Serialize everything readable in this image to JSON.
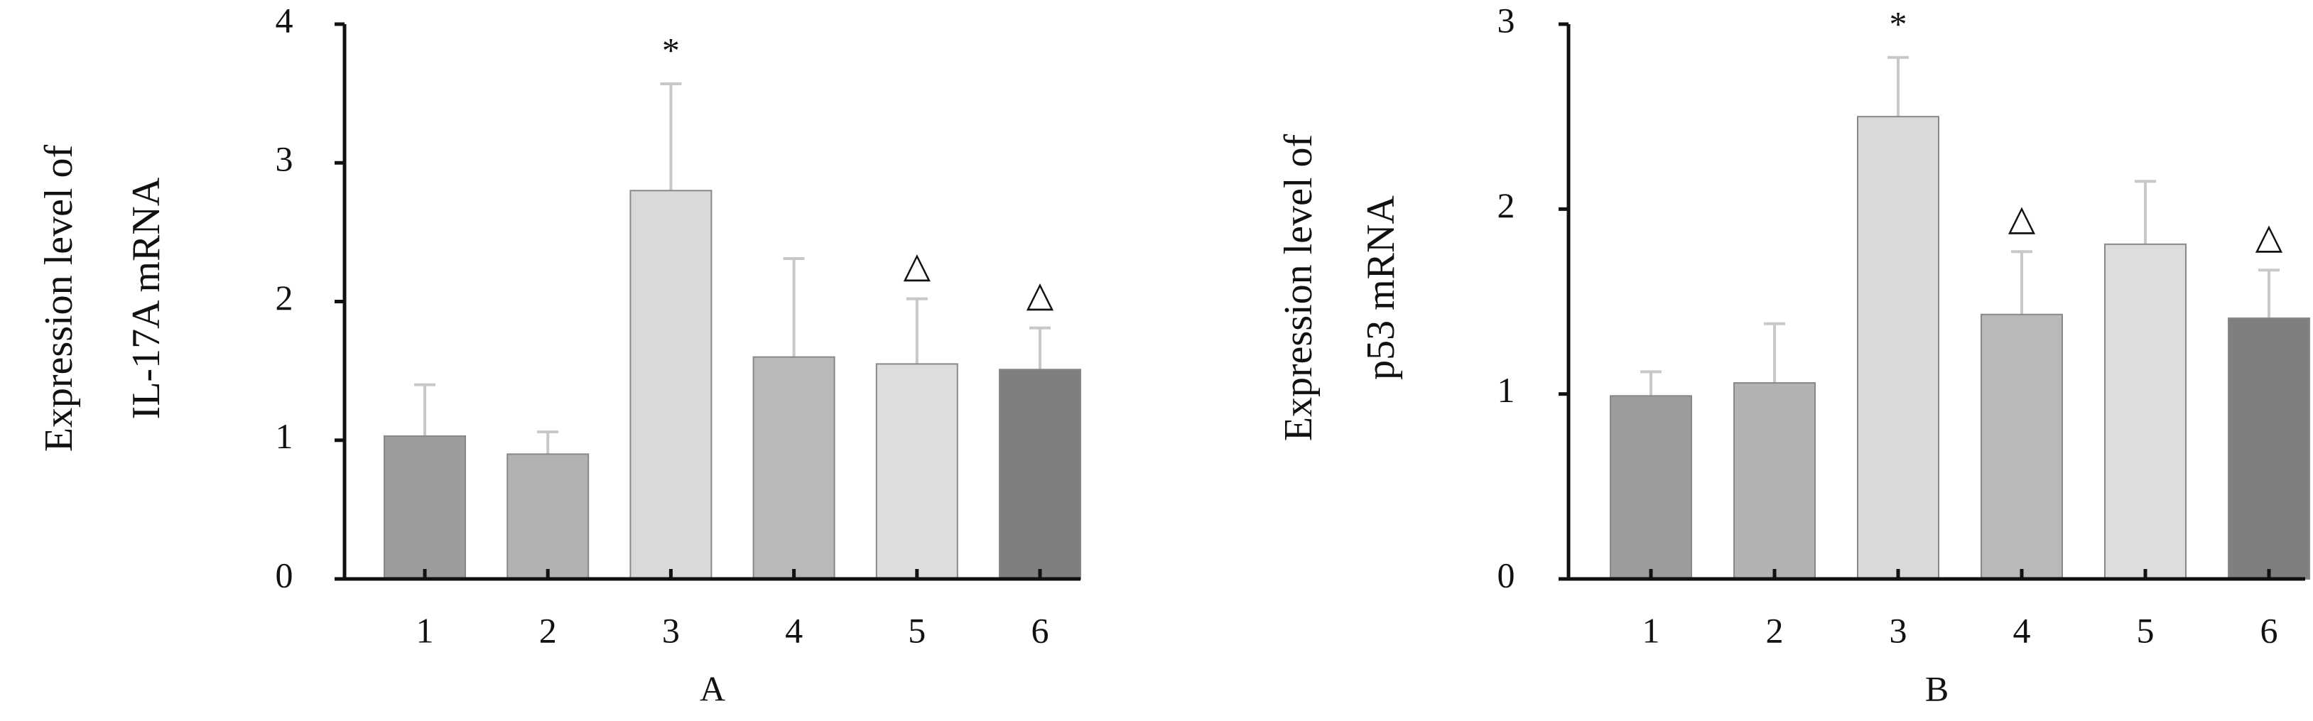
{
  "chart_data": [
    {
      "type": "bar",
      "ylabel": [
        "Expression level of",
        "IL-17A mRNA"
      ],
      "xlabel": "A",
      "categories": [
        "1",
        "2",
        "3",
        "4",
        "5",
        "6"
      ],
      "values": [
        1.03,
        0.9,
        2.8,
        1.6,
        1.55,
        1.51
      ],
      "errors": [
        0.37,
        0.16,
        0.77,
        0.71,
        0.47,
        0.3
      ],
      "annotations": [
        null,
        null,
        "*",
        null,
        "△",
        "△"
      ],
      "colors": [
        "#9c9c9c",
        "#b2b2b2",
        "#d9d9d9",
        "#b9b9b9",
        "#dddddd",
        "#7f7f7f"
      ],
      "ylim": [
        0,
        4
      ],
      "yticks": [
        0,
        1,
        2,
        3,
        4
      ]
    },
    {
      "type": "bar",
      "ylabel": [
        "Expression level of",
        "p53 mRNA"
      ],
      "xlabel": "B",
      "categories": [
        "1",
        "2",
        "3",
        "4",
        "5",
        "6"
      ],
      "values": [
        0.99,
        1.06,
        2.5,
        1.43,
        1.81,
        1.41
      ],
      "errors": [
        0.13,
        0.32,
        0.32,
        0.34,
        0.34,
        0.26
      ],
      "annotations": [
        null,
        null,
        "*",
        "△",
        null,
        "△"
      ],
      "colors": [
        "#9c9c9c",
        "#b2b2b2",
        "#d9d9d9",
        "#b9b9b9",
        "#dddddd",
        "#7f7f7f"
      ],
      "ylim": [
        0,
        3
      ],
      "yticks": [
        0,
        1,
        2,
        3
      ]
    }
  ]
}
